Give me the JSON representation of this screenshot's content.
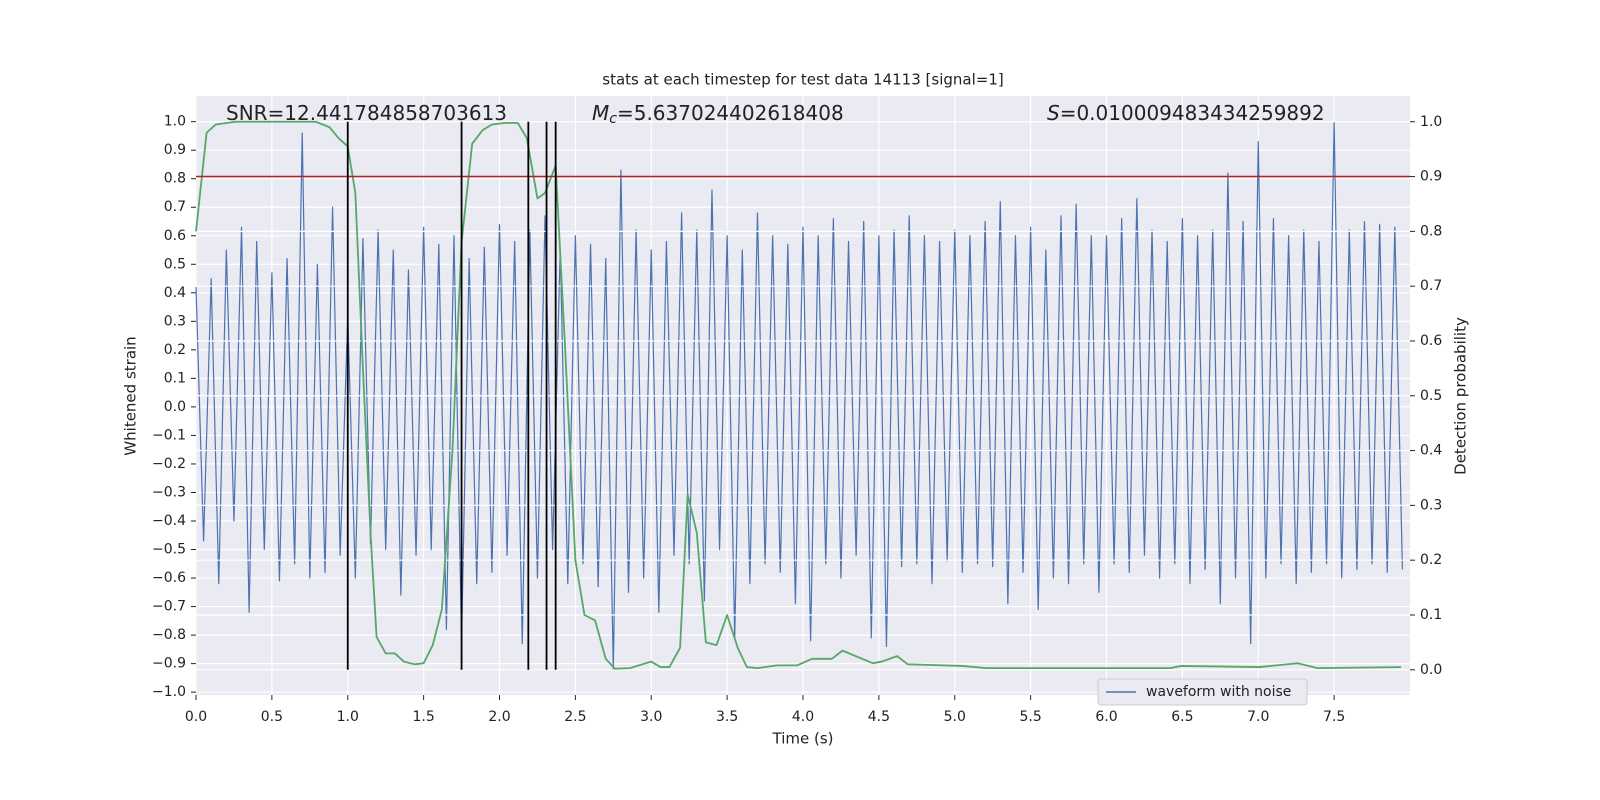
{
  "chart_data": {
    "type": "line",
    "title": "stats at each timestep for test data 14113 [signal=1]",
    "xlabel": "Time (s)",
    "ylabel": "Whitened strain",
    "y2label": "Detection probability",
    "annotations": [
      {
        "text": "SNR=12.441784858703613"
      },
      {
        "symbol": "M",
        "subscript": "c",
        "text": "=5.637024402618408"
      },
      {
        "symbol": "S",
        "text": "=0.010009483434259892"
      }
    ],
    "xlim": [
      0,
      8
    ],
    "ylim": [
      -1.01,
      1.09
    ],
    "y2lim": [
      -0.046,
      1.047
    ],
    "xticks": [
      {
        "value": 0,
        "label": "0.0"
      },
      0.5,
      {
        "value": 1,
        "label": "1.0"
      },
      1.5,
      {
        "value": 2,
        "label": "2.0"
      },
      2.5,
      {
        "value": 3,
        "label": "3.0"
      },
      3.5,
      {
        "value": 4,
        "label": "4.0"
      },
      4.5,
      {
        "value": 5,
        "label": "5.0"
      },
      5.5,
      {
        "value": 6,
        "label": "6.0"
      },
      6.5,
      {
        "value": 7,
        "label": "7.0"
      },
      7.5
    ],
    "yticks": [
      {
        "value": -1,
        "label": "−1.0"
      },
      {
        "value": -0.9,
        "label": "−0.9"
      },
      {
        "value": -0.8,
        "label": "−0.8"
      },
      {
        "value": -0.7,
        "label": "−0.7"
      },
      {
        "value": -0.6,
        "label": "−0.6"
      },
      {
        "value": -0.5,
        "label": "−0.5"
      },
      {
        "value": -0.4,
        "label": "−0.4"
      },
      {
        "value": -0.3,
        "label": "−0.3"
      },
      {
        "value": -0.2,
        "label": "−0.2"
      },
      {
        "value": -0.1,
        "label": "−0.1"
      },
      {
        "value": 0,
        "label": "0.0"
      },
      0.1,
      0.2,
      0.3,
      0.4,
      0.5,
      0.6,
      0.7,
      0.8,
      0.9,
      {
        "value": 1,
        "label": "1.0"
      }
    ],
    "y2ticks": [
      {
        "value": 0,
        "label": "0.0"
      },
      0.1,
      0.2,
      0.3,
      0.4,
      0.5,
      0.6,
      0.7,
      0.8,
      0.9,
      {
        "value": 1,
        "label": "1.0"
      }
    ],
    "grid": true,
    "legend": "lower right",
    "threshold": {
      "value": 0.9,
      "axis": "y2",
      "color": "#b22222"
    },
    "vlines": {
      "x": [
        1.0,
        1.75,
        2.19,
        2.31,
        2.37
      ],
      "y2range": [
        0,
        1
      ],
      "color": "#000000"
    },
    "series": [
      {
        "name": "waveform with noise",
        "color": "#4c72b0",
        "x": [
          0,
          0.05,
          0.1,
          0.15,
          0.2,
          0.25,
          0.3,
          0.35,
          0.4,
          0.45,
          0.5,
          0.55,
          0.6,
          0.65,
          0.7,
          0.75,
          0.8,
          0.85,
          0.9,
          0.95,
          1,
          1.05,
          1.1,
          1.15,
          1.2,
          1.25,
          1.3,
          1.35,
          1.4,
          1.45,
          1.5,
          1.55,
          1.6,
          1.65,
          1.7,
          1.75,
          1.8,
          1.85,
          1.9,
          1.95,
          2,
          2.05,
          2.1,
          2.15,
          2.2,
          2.25,
          2.3,
          2.35,
          2.4,
          2.45,
          2.5,
          2.55,
          2.6,
          2.65,
          2.7,
          2.75,
          2.8,
          2.85,
          2.9,
          2.95,
          3,
          3.05,
          3.1,
          3.15,
          3.2,
          3.25,
          3.3,
          3.35,
          3.4,
          3.45,
          3.5,
          3.55,
          3.6,
          3.65,
          3.7,
          3.75,
          3.8,
          3.85,
          3.9,
          3.95,
          4,
          4.05,
          4.1,
          4.15,
          4.2,
          4.25,
          4.3,
          4.35,
          4.4,
          4.45,
          4.5,
          4.55,
          4.6,
          4.65,
          4.7,
          4.75,
          4.8,
          4.85,
          4.9,
          4.95,
          5,
          5.05,
          5.1,
          5.15,
          5.2,
          5.25,
          5.3,
          5.35,
          5.4,
          5.45,
          5.5,
          5.55,
          5.6,
          5.65,
          5.7,
          5.75,
          5.8,
          5.85,
          5.9,
          5.95,
          6,
          6.05,
          6.1,
          6.15,
          6.2,
          6.25,
          6.3,
          6.35,
          6.4,
          6.45,
          6.5,
          6.55,
          6.6,
          6.65,
          6.7,
          6.75,
          6.8,
          6.85,
          6.9,
          6.95,
          7,
          7.05,
          7.1,
          7.15,
          7.2,
          7.25,
          7.3,
          7.35,
          7.4,
          7.45,
          7.5,
          7.55,
          7.6,
          7.65,
          7.7,
          7.75,
          7.8,
          7.85,
          7.9,
          7.95
        ],
        "values": [
          0.42,
          -0.47,
          0.45,
          -0.62,
          0.55,
          -0.4,
          0.63,
          -0.72,
          0.58,
          -0.5,
          0.47,
          -0.61,
          0.52,
          -0.55,
          0.96,
          -0.6,
          0.5,
          -0.58,
          0.7,
          -0.52,
          0.32,
          -0.6,
          0.59,
          -0.48,
          0.62,
          -0.5,
          0.55,
          -0.66,
          0.48,
          -0.52,
          0.63,
          -0.5,
          0.57,
          -0.78,
          0.6,
          -0.82,
          0.52,
          -0.62,
          0.56,
          -0.58,
          0.64,
          -0.52,
          0.58,
          -0.83,
          0.62,
          -0.6,
          0.67,
          -0.5,
          0.55,
          -0.62,
          0.6,
          -0.55,
          0.57,
          -0.63,
          0.52,
          -0.92,
          0.83,
          -0.65,
          0.62,
          -0.6,
          0.55,
          -0.72,
          0.58,
          -0.52,
          0.68,
          -0.55,
          0.62,
          -0.68,
          0.76,
          -0.5,
          0.6,
          -0.81,
          0.55,
          -0.62,
          0.68,
          -0.55,
          0.6,
          -0.58,
          0.57,
          -0.69,
          0.63,
          -0.82,
          0.6,
          -0.55,
          0.66,
          -0.6,
          0.58,
          -0.52,
          0.65,
          -0.81,
          0.6,
          -0.84,
          0.62,
          -0.56,
          0.67,
          -0.55,
          0.6,
          -0.62,
          0.58,
          -0.54,
          0.62,
          -0.58,
          0.6,
          -0.55,
          0.65,
          -0.56,
          0.72,
          -0.69,
          0.6,
          -0.58,
          0.63,
          -0.71,
          0.55,
          -0.6,
          0.67,
          -0.62,
          0.71,
          -0.55,
          0.6,
          -0.65,
          0.6,
          -0.55,
          0.66,
          -0.58,
          0.73,
          -0.52,
          0.62,
          -0.6,
          0.58,
          -0.55,
          0.66,
          -0.62,
          0.6,
          -0.57,
          0.62,
          -0.69,
          0.82,
          -0.6,
          0.65,
          -0.83,
          0.93,
          -0.6,
          0.66,
          -0.55,
          0.6,
          -0.62,
          0.62,
          -0.58,
          0.58,
          -0.55,
          1.0,
          -0.6,
          0.62,
          -0.57,
          0.65,
          -0.55,
          0.64,
          -0.58,
          0.63,
          -0.57
        ]
      },
      {
        "color": "#55a868",
        "axis": "y2",
        "x": [
          0,
          0.07,
          0.13,
          0.26,
          0.79,
          0.88,
          0.94,
          1.0,
          1.05,
          1.1,
          1.15,
          1.19,
          1.25,
          1.31,
          1.37,
          1.44,
          1.5,
          1.56,
          1.62,
          1.69,
          1.75,
          1.82,
          1.89,
          1.95,
          2.04,
          2.12,
          2.18,
          2.25,
          2.3,
          2.37,
          2.43,
          2.5,
          2.56,
          2.63,
          2.7,
          2.76,
          2.86,
          3.0,
          3.06,
          3.12,
          3.19,
          3.24,
          3.3,
          3.36,
          3.43,
          3.5,
          3.57,
          3.63,
          3.7,
          3.83,
          3.96,
          4.06,
          4.19,
          4.26,
          4.46,
          4.52,
          4.62,
          4.69,
          4.82,
          5.05,
          5.21,
          6.42,
          6.49,
          7.01,
          7.26,
          7.39,
          7.94
        ],
        "values": [
          0.8,
          0.98,
          0.995,
          1.0,
          1.0,
          0.99,
          0.97,
          0.955,
          0.87,
          0.55,
          0.25,
          0.06,
          0.03,
          0.03,
          0.015,
          0.01,
          0.012,
          0.045,
          0.11,
          0.4,
          0.78,
          0.96,
          0.985,
          0.995,
          0.998,
          0.998,
          0.97,
          0.86,
          0.87,
          0.92,
          0.6,
          0.2,
          0.1,
          0.09,
          0.02,
          0.002,
          0.003,
          0.015,
          0.005,
          0.005,
          0.04,
          0.32,
          0.25,
          0.05,
          0.045,
          0.1,
          0.04,
          0.005,
          0.003,
          0.008,
          0.008,
          0.02,
          0.02,
          0.035,
          0.012,
          0.015,
          0.025,
          0.01,
          0.009,
          0.007,
          0.003,
          0.003,
          0.007,
          0.005,
          0.012,
          0.003,
          0.005
        ]
      }
    ]
  }
}
